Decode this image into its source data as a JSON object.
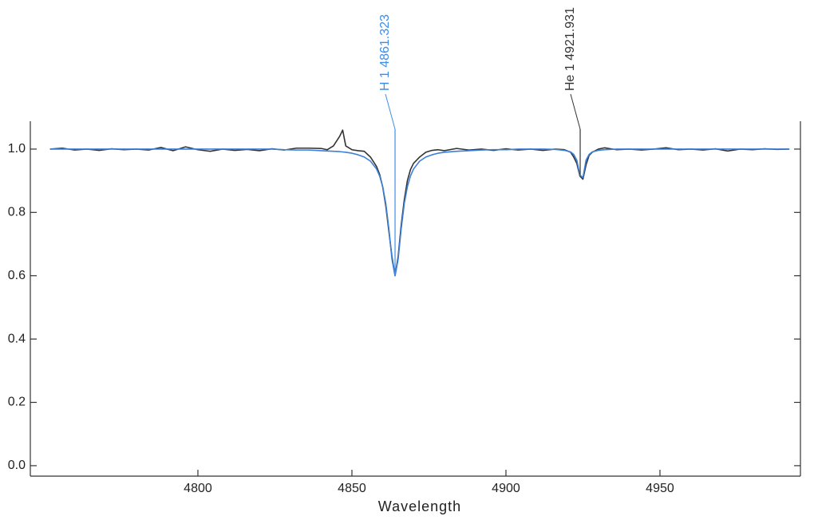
{
  "chart_data": {
    "type": "line",
    "x_label": "Wavelength",
    "x": [
      4752,
      4756,
      4760,
      4764,
      4768,
      4772,
      4776,
      4780,
      4784,
      4788,
      4792,
      4796,
      4800,
      4804,
      4808,
      4812,
      4816,
      4820,
      4824,
      4828,
      4832,
      4836,
      4840,
      4842,
      4844,
      4846,
      4847,
      4848,
      4850,
      4852,
      4854,
      4856,
      4858,
      4859,
      4860,
      4861,
      4862,
      4863,
      4864,
      4865,
      4866,
      4867,
      4868,
      4869,
      4870,
      4872,
      4874,
      4876,
      4878,
      4880,
      4884,
      4888,
      4892,
      4896,
      4900,
      4904,
      4908,
      4912,
      4916,
      4919,
      4921,
      4922,
      4923,
      4924,
      4925,
      4926,
      4927,
      4928,
      4930,
      4932,
      4936,
      4940,
      4944,
      4948,
      4952,
      4956,
      4960,
      4964,
      4968,
      4972,
      4976,
      4980,
      4984,
      4988,
      4992
    ],
    "series": [
      {
        "color": "#333333",
        "values": [
          1.0,
          1.003,
          0.997,
          1.0,
          0.996,
          1.001,
          0.998,
          1.0,
          0.997,
          1.005,
          0.995,
          1.007,
          0.998,
          0.993,
          1.0,
          0.996,
          0.999,
          0.995,
          1.001,
          0.997,
          1.003,
          1.003,
          1.002,
          0.998,
          1.01,
          1.04,
          1.06,
          1.01,
          0.998,
          0.995,
          0.993,
          0.975,
          0.945,
          0.92,
          0.88,
          0.82,
          0.74,
          0.66,
          0.6,
          0.66,
          0.76,
          0.84,
          0.9,
          0.935,
          0.955,
          0.975,
          0.99,
          0.996,
          0.998,
          0.995,
          1.002,
          0.997,
          1.0,
          0.996,
          1.001,
          0.997,
          1.0,
          0.996,
          1.0,
          0.998,
          0.99,
          0.975,
          0.955,
          0.915,
          0.905,
          0.95,
          0.98,
          0.99,
          1.0,
          1.004,
          0.998,
          1.0,
          0.997,
          1.0,
          1.004,
          0.998,
          1.0,
          0.997,
          1.001,
          0.994,
          1.0,
          0.998,
          1.001,
          0.999,
          1.0
        ]
      },
      {
        "color": "#3a7fd9",
        "values": [
          1.0,
          1.0,
          1.0,
          1.0,
          1.0,
          1.0,
          1.0,
          1.0,
          1.0,
          1.0,
          1.0,
          1.0,
          1.0,
          1.0,
          1.0,
          1.0,
          1.0,
          1.0,
          1.0,
          0.998,
          0.997,
          0.997,
          0.995,
          0.994,
          0.993,
          0.992,
          0.991,
          0.99,
          0.987,
          0.982,
          0.975,
          0.962,
          0.937,
          0.915,
          0.881,
          0.828,
          0.748,
          0.652,
          0.6,
          0.652,
          0.748,
          0.828,
          0.881,
          0.915,
          0.937,
          0.962,
          0.975,
          0.982,
          0.987,
          0.99,
          0.993,
          0.995,
          0.997,
          0.998,
          0.998,
          1.0,
          1.0,
          1.0,
          0.999,
          0.996,
          0.991,
          0.983,
          0.965,
          0.918,
          0.91,
          0.965,
          0.983,
          0.991,
          0.996,
          0.998,
          1.0,
          1.0,
          1.0,
          1.0,
          1.0,
          1.0,
          1.0,
          1.0,
          1.0,
          1.0,
          1.0,
          1.0,
          1.0,
          1.0,
          1.0
        ]
      }
    ],
    "annotations": [
      {
        "text": "H 1 4861.323",
        "x": 4864,
        "color": "#3d8ee8"
      },
      {
        "text": "He 1 4921.931",
        "x": 4924.1,
        "color": "#333333"
      }
    ],
    "xlim": [
      4745.6,
      4995.6
    ],
    "ylim": [
      -0.033,
      1.088
    ],
    "xticks": [
      4800,
      4850,
      4900,
      4950
    ],
    "yticks": [
      {
        "value": 0,
        "label": "0.0"
      },
      {
        "value": 0.2,
        "label": "0.2"
      },
      {
        "value": 0.4,
        "label": "0.4"
      },
      {
        "value": 0.6,
        "label": "0.6"
      },
      {
        "value": 0.8,
        "label": "0.8"
      },
      {
        "value": 1,
        "label": "1.0"
      }
    ]
  }
}
